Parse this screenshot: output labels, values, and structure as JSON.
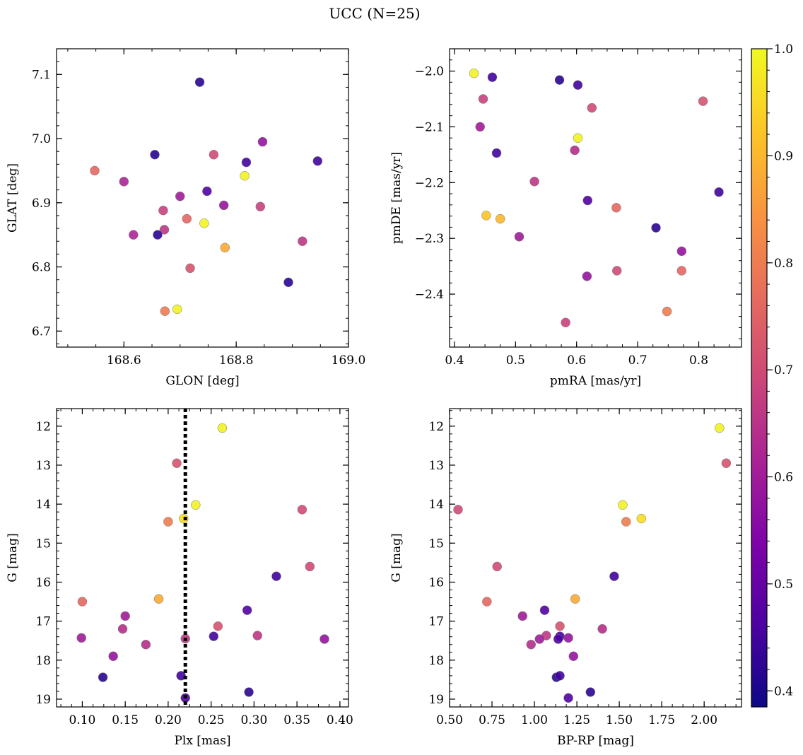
{
  "figure": {
    "title": "UCC (N=25)",
    "colorbar": {
      "colormap": "plasma",
      "range": [
        0.385,
        1.0
      ],
      "ticks": [
        0.4,
        0.5,
        0.6,
        0.7,
        0.8,
        0.9,
        1.0
      ],
      "tick_labels": [
        "0.4",
        "0.5",
        "0.6",
        "0.7",
        "0.8",
        "0.9",
        "1.0"
      ]
    }
  },
  "chart_data": [
    {
      "type": "scatter",
      "xlabel": "GLON [deg]",
      "ylabel": "GLAT [deg]",
      "xlim": [
        168.48,
        169.0
      ],
      "ylim": [
        6.675,
        7.14
      ],
      "invert_y": false,
      "xticks": [
        168.6,
        168.8,
        169.0
      ],
      "xtick_labels": [
        "168.6",
        "168.8",
        "169.0"
      ],
      "yticks": [
        6.7,
        6.8,
        6.9,
        7.0,
        7.1
      ],
      "ytick_labels": [
        "6.7",
        "6.8",
        "6.9",
        "7.0",
        "7.1"
      ],
      "points": [
        {
          "x": 168.735,
          "y": 7.088,
          "c": 0.42
        },
        {
          "x": 168.655,
          "y": 6.975,
          "c": 0.42
        },
        {
          "x": 168.76,
          "y": 6.975,
          "c": 0.7
        },
        {
          "x": 168.847,
          "y": 6.995,
          "c": 0.58
        },
        {
          "x": 168.818,
          "y": 6.963,
          "c": 0.45
        },
        {
          "x": 168.945,
          "y": 6.965,
          "c": 0.45
        },
        {
          "x": 168.548,
          "y": 6.95,
          "c": 0.76
        },
        {
          "x": 168.815,
          "y": 6.942,
          "c": 0.99
        },
        {
          "x": 168.6,
          "y": 6.933,
          "c": 0.62
        },
        {
          "x": 168.748,
          "y": 6.918,
          "c": 0.47
        },
        {
          "x": 168.7,
          "y": 6.91,
          "c": 0.6
        },
        {
          "x": 168.778,
          "y": 6.896,
          "c": 0.58
        },
        {
          "x": 168.843,
          "y": 6.894,
          "c": 0.68
        },
        {
          "x": 168.67,
          "y": 6.888,
          "c": 0.68
        },
        {
          "x": 168.712,
          "y": 6.875,
          "c": 0.76
        },
        {
          "x": 168.743,
          "y": 6.868,
          "c": 0.99
        },
        {
          "x": 168.672,
          "y": 6.858,
          "c": 0.66
        },
        {
          "x": 168.66,
          "y": 6.85,
          "c": 0.42
        },
        {
          "x": 168.617,
          "y": 6.85,
          "c": 0.62
        },
        {
          "x": 168.918,
          "y": 6.84,
          "c": 0.66
        },
        {
          "x": 168.78,
          "y": 6.83,
          "c": 0.88
        },
        {
          "x": 168.718,
          "y": 6.798,
          "c": 0.72
        },
        {
          "x": 168.893,
          "y": 6.776,
          "c": 0.42
        },
        {
          "x": 168.695,
          "y": 6.734,
          "c": 0.99
        },
        {
          "x": 168.673,
          "y": 6.731,
          "c": 0.8
        }
      ]
    },
    {
      "type": "scatter",
      "xlabel": "pmRA [mas/yr]",
      "ylabel": "pmDE [mas/yr]",
      "xlim": [
        0.392,
        0.87
      ],
      "ylim": [
        -2.495,
        -1.96
      ],
      "invert_y": false,
      "xticks": [
        0.4,
        0.5,
        0.6,
        0.7,
        0.8
      ],
      "xtick_labels": [
        "0.4",
        "0.5",
        "0.6",
        "0.7",
        "0.8"
      ],
      "yticks": [
        -2.4,
        -2.3,
        -2.2,
        -2.1,
        -2.0
      ],
      "ytick_labels": [
        "−2.4",
        "−2.3",
        "−2.2",
        "−2.1",
        "−2.0"
      ],
      "points": [
        {
          "x": 0.432,
          "y": -2.004,
          "c": 0.99
        },
        {
          "x": 0.462,
          "y": -2.011,
          "c": 0.45
        },
        {
          "x": 0.572,
          "y": -2.016,
          "c": 0.42
        },
        {
          "x": 0.602,
          "y": -2.025,
          "c": 0.45
        },
        {
          "x": 0.447,
          "y": -2.05,
          "c": 0.68
        },
        {
          "x": 0.807,
          "y": -2.054,
          "c": 0.72
        },
        {
          "x": 0.625,
          "y": -2.066,
          "c": 0.7
        },
        {
          "x": 0.442,
          "y": -2.1,
          "c": 0.6
        },
        {
          "x": 0.602,
          "y": -2.12,
          "c": 0.99
        },
        {
          "x": 0.597,
          "y": -2.142,
          "c": 0.64
        },
        {
          "x": 0.469,
          "y": -2.147,
          "c": 0.45
        },
        {
          "x": 0.531,
          "y": -2.198,
          "c": 0.66
        },
        {
          "x": 0.833,
          "y": -2.217,
          "c": 0.45
        },
        {
          "x": 0.618,
          "y": -2.232,
          "c": 0.47
        },
        {
          "x": 0.665,
          "y": -2.245,
          "c": 0.76
        },
        {
          "x": 0.452,
          "y": -2.259,
          "c": 0.92
        },
        {
          "x": 0.475,
          "y": -2.265,
          "c": 0.9
        },
        {
          "x": 0.73,
          "y": -2.281,
          "c": 0.42
        },
        {
          "x": 0.506,
          "y": -2.297,
          "c": 0.6
        },
        {
          "x": 0.772,
          "y": -2.323,
          "c": 0.58
        },
        {
          "x": 0.666,
          "y": -2.358,
          "c": 0.7
        },
        {
          "x": 0.772,
          "y": -2.358,
          "c": 0.76
        },
        {
          "x": 0.617,
          "y": -2.368,
          "c": 0.58
        },
        {
          "x": 0.748,
          "y": -2.431,
          "c": 0.8
        },
        {
          "x": 0.582,
          "y": -2.451,
          "c": 0.68
        }
      ]
    },
    {
      "type": "scatter",
      "xlabel": "Plx [mas]",
      "ylabel": "G [mag]",
      "xlim": [
        0.07,
        0.41
      ],
      "ylim": [
        11.55,
        19.2
      ],
      "invert_y": true,
      "xticks": [
        0.1,
        0.15,
        0.2,
        0.25,
        0.3,
        0.35,
        0.4
      ],
      "xtick_labels": [
        "0.10",
        "0.15",
        "0.20",
        "0.25",
        "0.30",
        "0.35",
        "0.40"
      ],
      "yticks": [
        12,
        13,
        14,
        15,
        16,
        17,
        18,
        19
      ],
      "ytick_labels": [
        "12",
        "13",
        "14",
        "15",
        "16",
        "17",
        "18",
        "19"
      ],
      "vline": 0.22,
      "points": [
        {
          "x": 0.263,
          "y": 12.05,
          "c": 0.99
        },
        {
          "x": 0.21,
          "y": 12.95,
          "c": 0.72
        },
        {
          "x": 0.232,
          "y": 14.02,
          "c": 0.99
        },
        {
          "x": 0.356,
          "y": 14.14,
          "c": 0.7
        },
        {
          "x": 0.218,
          "y": 14.37,
          "c": 0.96
        },
        {
          "x": 0.2,
          "y": 14.45,
          "c": 0.8
        },
        {
          "x": 0.365,
          "y": 15.6,
          "c": 0.7
        },
        {
          "x": 0.326,
          "y": 15.85,
          "c": 0.45
        },
        {
          "x": 0.1,
          "y": 16.5,
          "c": 0.76
        },
        {
          "x": 0.189,
          "y": 16.43,
          "c": 0.88
        },
        {
          "x": 0.292,
          "y": 16.72,
          "c": 0.47
        },
        {
          "x": 0.15,
          "y": 16.87,
          "c": 0.6
        },
        {
          "x": 0.258,
          "y": 17.13,
          "c": 0.72
        },
        {
          "x": 0.147,
          "y": 17.2,
          "c": 0.64
        },
        {
          "x": 0.304,
          "y": 17.37,
          "c": 0.66
        },
        {
          "x": 0.253,
          "y": 17.39,
          "c": 0.45
        },
        {
          "x": 0.099,
          "y": 17.43,
          "c": 0.6
        },
        {
          "x": 0.22,
          "y": 17.45,
          "c": 0.66
        },
        {
          "x": 0.382,
          "y": 17.46,
          "c": 0.58
        },
        {
          "x": 0.174,
          "y": 17.6,
          "c": 0.64
        },
        {
          "x": 0.136,
          "y": 17.9,
          "c": 0.58
        },
        {
          "x": 0.124,
          "y": 18.44,
          "c": 0.42
        },
        {
          "x": 0.215,
          "y": 18.4,
          "c": 0.45
        },
        {
          "x": 0.294,
          "y": 18.82,
          "c": 0.42
        },
        {
          "x": 0.22,
          "y": 18.97,
          "c": 0.47
        }
      ]
    },
    {
      "type": "scatter",
      "xlabel": "BP-RP [mag]",
      "ylabel": "G [mag]",
      "xlim": [
        0.5,
        2.22
      ],
      "ylim": [
        11.55,
        19.2
      ],
      "invert_y": true,
      "xticks": [
        0.5,
        0.75,
        1.0,
        1.25,
        1.5,
        1.75,
        2.0
      ],
      "xtick_labels": [
        "0.50",
        "0.75",
        "1.00",
        "1.25",
        "1.50",
        "1.75",
        "2.00"
      ],
      "yticks": [
        12,
        13,
        14,
        15,
        16,
        17,
        18,
        19
      ],
      "ytick_labels": [
        "12",
        "13",
        "14",
        "15",
        "16",
        "17",
        "18",
        "19"
      ],
      "points": [
        {
          "x": 2.09,
          "y": 12.05,
          "c": 0.99
        },
        {
          "x": 2.13,
          "y": 12.95,
          "c": 0.72
        },
        {
          "x": 0.55,
          "y": 14.14,
          "c": 0.7
        },
        {
          "x": 1.52,
          "y": 14.02,
          "c": 0.99
        },
        {
          "x": 1.63,
          "y": 14.37,
          "c": 0.96
        },
        {
          "x": 1.54,
          "y": 14.45,
          "c": 0.8
        },
        {
          "x": 0.78,
          "y": 15.6,
          "c": 0.7
        },
        {
          "x": 1.47,
          "y": 15.85,
          "c": 0.45
        },
        {
          "x": 0.72,
          "y": 16.5,
          "c": 0.76
        },
        {
          "x": 1.24,
          "y": 16.43,
          "c": 0.88
        },
        {
          "x": 1.06,
          "y": 16.72,
          "c": 0.47
        },
        {
          "x": 0.93,
          "y": 16.87,
          "c": 0.6
        },
        {
          "x": 1.15,
          "y": 17.13,
          "c": 0.72
        },
        {
          "x": 1.4,
          "y": 17.2,
          "c": 0.64
        },
        {
          "x": 1.07,
          "y": 17.37,
          "c": 0.66
        },
        {
          "x": 1.15,
          "y": 17.39,
          "c": 0.45
        },
        {
          "x": 1.03,
          "y": 17.46,
          "c": 0.6
        },
        {
          "x": 1.2,
          "y": 17.43,
          "c": 0.58
        },
        {
          "x": 1.14,
          "y": 17.46,
          "c": 0.47
        },
        {
          "x": 0.98,
          "y": 17.6,
          "c": 0.64
        },
        {
          "x": 1.23,
          "y": 17.9,
          "c": 0.58
        },
        {
          "x": 1.13,
          "y": 18.44,
          "c": 0.42
        },
        {
          "x": 1.15,
          "y": 18.4,
          "c": 0.45
        },
        {
          "x": 1.33,
          "y": 18.82,
          "c": 0.42
        },
        {
          "x": 1.2,
          "y": 18.97,
          "c": 0.47
        }
      ]
    }
  ]
}
